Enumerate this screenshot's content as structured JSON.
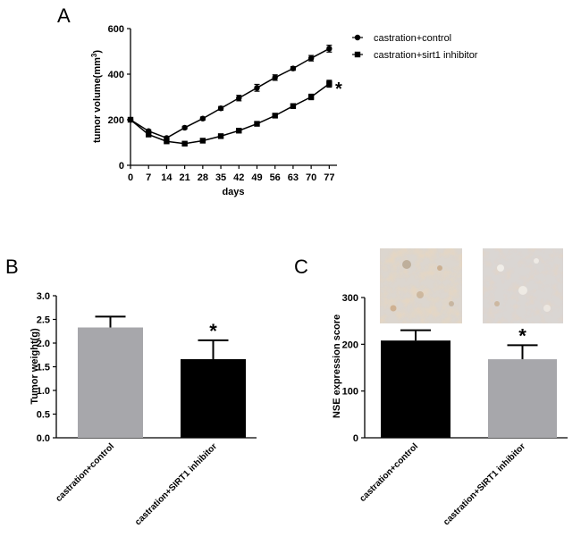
{
  "colors": {
    "ink": "#000000",
    "gray_bar": "#a7a7ab",
    "ihc_bg": "#ddd7d0"
  },
  "chart_data": [
    {
      "panel_label": "A",
      "type": "line",
      "xlabel": "days",
      "ylabel": "tumor volume(mm",
      "ylabel_sup": "3",
      "ylabel_close": ")",
      "x": [
        0,
        7,
        14,
        21,
        28,
        35,
        42,
        49,
        56,
        63,
        70,
        77
      ],
      "x_ticks": [
        "0",
        "7",
        "14",
        "21",
        "28",
        "35",
        "42",
        "49",
        "56",
        "63",
        "70",
        "77"
      ],
      "xlim": [
        0,
        80
      ],
      "ylim": [
        0,
        600
      ],
      "y_ticks": [
        0,
        200,
        400,
        600
      ],
      "significance": "*",
      "series": [
        {
          "name": "castration+control",
          "marker": "circle",
          "values": [
            200,
            150,
            120,
            165,
            205,
            250,
            295,
            340,
            385,
            425,
            470,
            512
          ],
          "errors": [
            8,
            6,
            6,
            6,
            7,
            8,
            12,
            15,
            12,
            8,
            12,
            15
          ]
        },
        {
          "name": "castration+sirt1 inhibitor",
          "marker": "square",
          "values": [
            200,
            135,
            105,
            95,
            108,
            128,
            152,
            182,
            218,
            260,
            300,
            358
          ],
          "errors": [
            8,
            6,
            6,
            5,
            5,
            7,
            7,
            7,
            9,
            10,
            12,
            15
          ]
        }
      ]
    },
    {
      "panel_label": "B",
      "type": "bar",
      "ylabel": "Tumor weight(g)",
      "ylim": [
        0,
        3.0
      ],
      "y_ticks": [
        "0.0",
        "0.5",
        "1.0",
        "1.5",
        "2.0",
        "2.5",
        "3.0"
      ],
      "categories": [
        "castration+control",
        "castration+SIRT1 inhibitor"
      ],
      "values": [
        2.33,
        1.66
      ],
      "errors": [
        0.23,
        0.4
      ],
      "bar_colors": [
        "#a7a7ab",
        "#000000"
      ],
      "significance": [
        "",
        "*"
      ]
    },
    {
      "panel_label": "C",
      "type": "bar",
      "ylabel": "NSE expression score",
      "ylim": [
        0,
        300
      ],
      "y_ticks": [
        "0",
        "100",
        "200",
        "300"
      ],
      "categories": [
        "castration+control",
        "castration+SIRT1 inhibitor"
      ],
      "values": [
        208,
        168
      ],
      "errors": [
        22,
        30
      ],
      "bar_colors": [
        "#000000",
        "#a7a7ab"
      ],
      "significance": [
        "",
        "*"
      ],
      "images": [
        "ihc-image-control",
        "ihc-image-sirt1-inhibitor"
      ]
    }
  ]
}
